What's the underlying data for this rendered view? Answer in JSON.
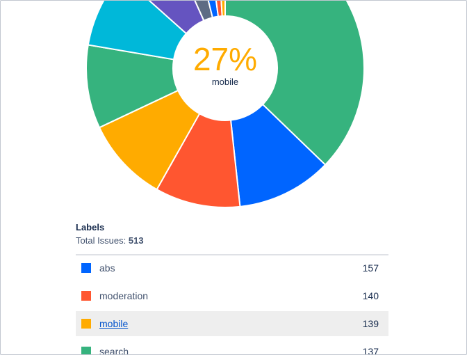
{
  "chart_data": {
    "type": "pie",
    "title": "",
    "center": {
      "value": "27%",
      "label": "mobile"
    },
    "categories": [
      "abs",
      "moderation",
      "mobile",
      "search",
      "",
      "",
      "",
      "",
      "",
      ""
    ],
    "values": [
      157,
      140,
      139,
      137,
      126,
      95,
      40,
      25,
      17,
      13
    ],
    "colors": [
      "#0065ff",
      "#ff5630",
      "#ffab00",
      "#36b37e",
      "#00b8d9",
      "#6554c0",
      "#5e6c84",
      "#0065ff",
      "#ff5630",
      "#ffab00"
    ],
    "highlight_category": "mobile"
  },
  "legend": {
    "title": "Labels",
    "total_label": "Total Issues:",
    "total_value": "513",
    "rows": [
      {
        "label": "abs",
        "count": "157",
        "color": "#0065ff"
      },
      {
        "label": "moderation",
        "count": "140",
        "color": "#ff5630"
      },
      {
        "label": "mobile",
        "count": "139",
        "color": "#ffab00",
        "highlight": true,
        "link": true
      },
      {
        "label": "search",
        "count": "137",
        "color": "#36b37e"
      }
    ]
  },
  "colors": {
    "big_slice": "#36b37e",
    "text": "#172b4d",
    "subtle_text": "#42526e"
  }
}
